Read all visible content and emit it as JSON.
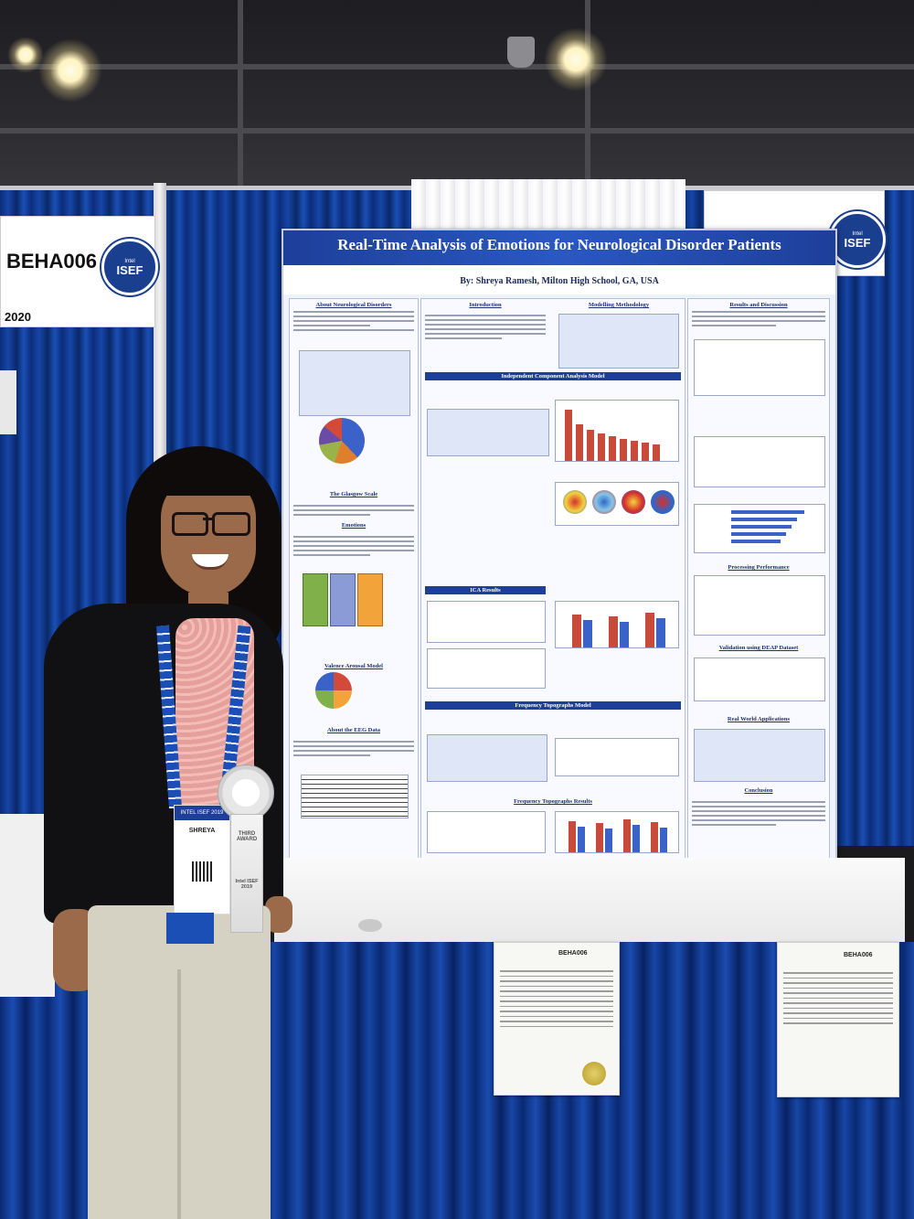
{
  "booth": {
    "project_code": "BEHA006",
    "year_fragment": "2020",
    "logo_text": "ISEF",
    "logo_sub": "Intel"
  },
  "poster": {
    "title": "Real-Time Analysis of Emotions for Neurological Disorder Patients",
    "byline": "By: Shreya Ramesh, Milton High School, GA, USA",
    "sections": {
      "about": "About Neurological Disorders",
      "intro": "Introduction",
      "methodology": "Modelling Methodology",
      "results": "Results and Discussion",
      "ica_model": "Independent Component Analysis Model",
      "glasgow": "The Glasgow Scale",
      "emotions": "Emotions",
      "ica_results": "ICA Results",
      "valence": "Valence Arousal Model",
      "eeg": "About the EEG Data",
      "freq_model": "Frequency Topographs Model",
      "freq_results": "Frequency Topographs Results",
      "processing": "Processing Performance",
      "validation": "Validation using DEAP Dataset",
      "real_world": "Real World Applications",
      "conclusion": "Conclusion"
    }
  },
  "person": {
    "badge_name": "SHREYA",
    "badge_event": "INTEL ISEF 2019",
    "ribbon_text_1": "THIRD",
    "ribbon_text_2": "AWARD",
    "ribbon_text_3": "Intel ISEF 2019"
  },
  "desk_papers": {
    "left_code": "BEHA006",
    "right_code": "BEHA006"
  },
  "colors": {
    "curtain_blue": "#1646a8",
    "poster_header": "#1d3f9a",
    "chart_orange": "#f2a33a",
    "chart_red": "#c84a3a"
  }
}
